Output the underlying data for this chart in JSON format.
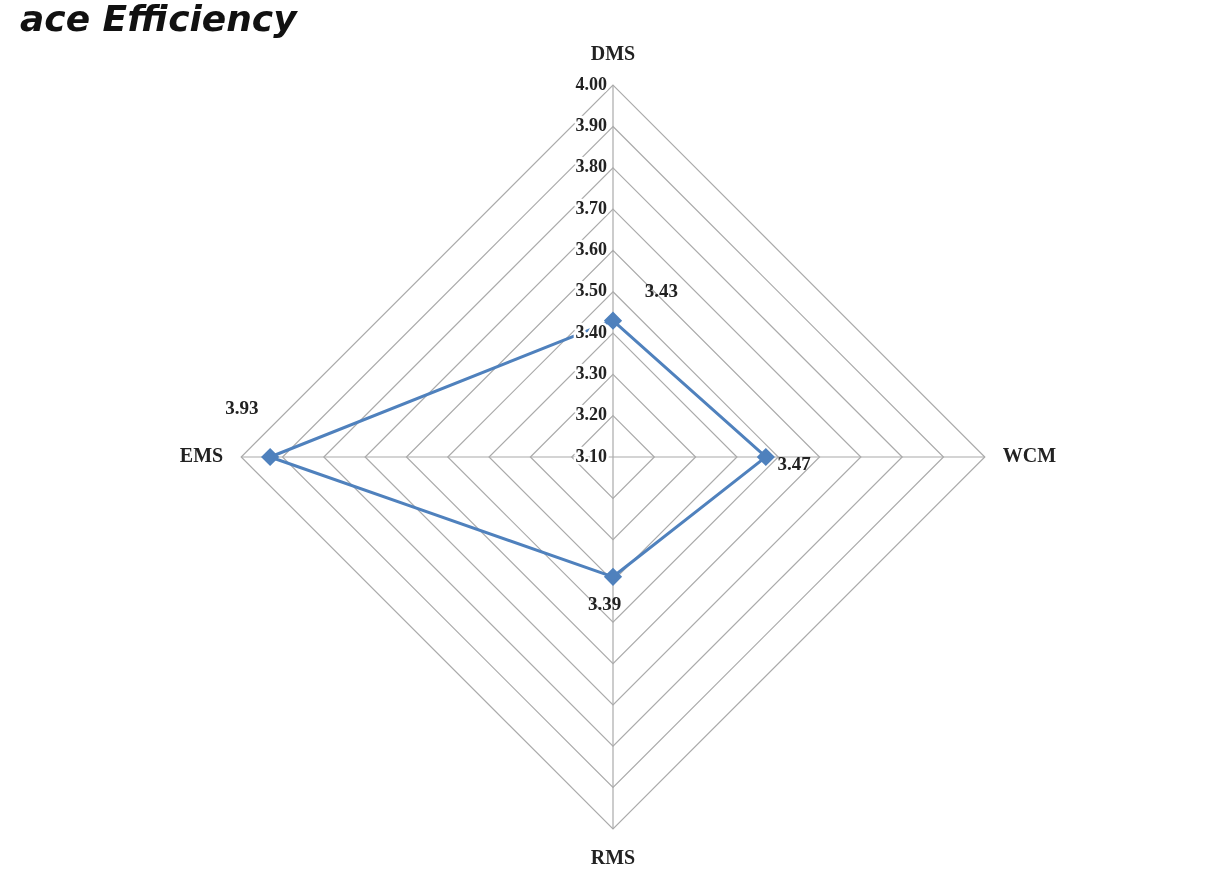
{
  "chart_data": {
    "type": "radar",
    "title": "ace Efficiency",
    "categories": [
      "DMS",
      "WCM",
      "RMS",
      "EMS"
    ],
    "series": [
      {
        "color": "#4f81bd",
        "values": [
          3.43,
          3.47,
          3.39,
          3.93
        ]
      }
    ],
    "ylim": [
      3.1,
      4.0
    ],
    "yticks": [
      {
        "value": 3.1,
        "label": "3.10"
      },
      {
        "value": 3.2,
        "label": "3.20"
      },
      {
        "value": 3.3,
        "label": "3.30"
      },
      {
        "value": 3.4,
        "label": "3.40"
      },
      {
        "value": 3.5,
        "label": "3.50"
      },
      {
        "value": 3.6,
        "label": "3.60"
      },
      {
        "value": 3.7,
        "label": "3.70"
      },
      {
        "value": 3.8,
        "label": "3.80"
      },
      {
        "value": 3.9,
        "label": "3.90"
      },
      {
        "value": 4.0,
        "label": "4.00"
      }
    ],
    "data_labels": true,
    "grid": true,
    "legend": false,
    "marker": "diamond",
    "line_style": "solid"
  }
}
